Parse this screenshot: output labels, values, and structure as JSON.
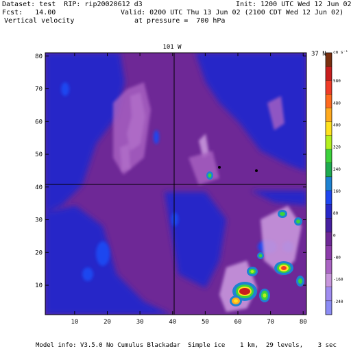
{
  "header": {
    "dataset": "Dataset: test  RIP: rip20020612 d3",
    "init": "Init: 1200 UTC Wed 12 Jun 02",
    "fcst": "Fcst:   14.00",
    "valid": "Valid: 0200 UTC Thu 13 Jun 02 (2100 CDT Wed 12 Jun 02)",
    "field": "Vertical velocity",
    "pressure": "at pressure =  700 hPa"
  },
  "plot": {
    "top_label_lon": "101 W",
    "top_label_lat": "37 N",
    "x_ticks": [
      "10",
      "20",
      "30",
      "40",
      "50",
      "60",
      "70",
      "80"
    ],
    "y_ticks": [
      "10",
      "20",
      "30",
      "40",
      "50",
      "60",
      "70",
      "80"
    ]
  },
  "colorbar": {
    "unit": "cm s⁻¹",
    "labels": [
      "580",
      "480",
      "400",
      "320",
      "240",
      "160",
      "80",
      "0",
      "-80",
      "-160",
      "-240"
    ],
    "colors": [
      "#7a3010",
      "#c81e1e",
      "#f03c28",
      "#ff6a1e",
      "#ffaa1e",
      "#ffe11e",
      "#b4f01e",
      "#3cd23c",
      "#1eaa50",
      "#1e82d2",
      "#1e46f0",
      "#2828c8",
      "#4620a0",
      "#6e2896",
      "#8c3caa",
      "#aa64c3",
      "#c896dc",
      "#a08cf0",
      "#8c8cf5"
    ]
  },
  "footer": {
    "model_info": "Model info: V3.5.0 No Cumulus Blackadar  Simple ice    1 km,  29 levels,    3 sec"
  }
}
